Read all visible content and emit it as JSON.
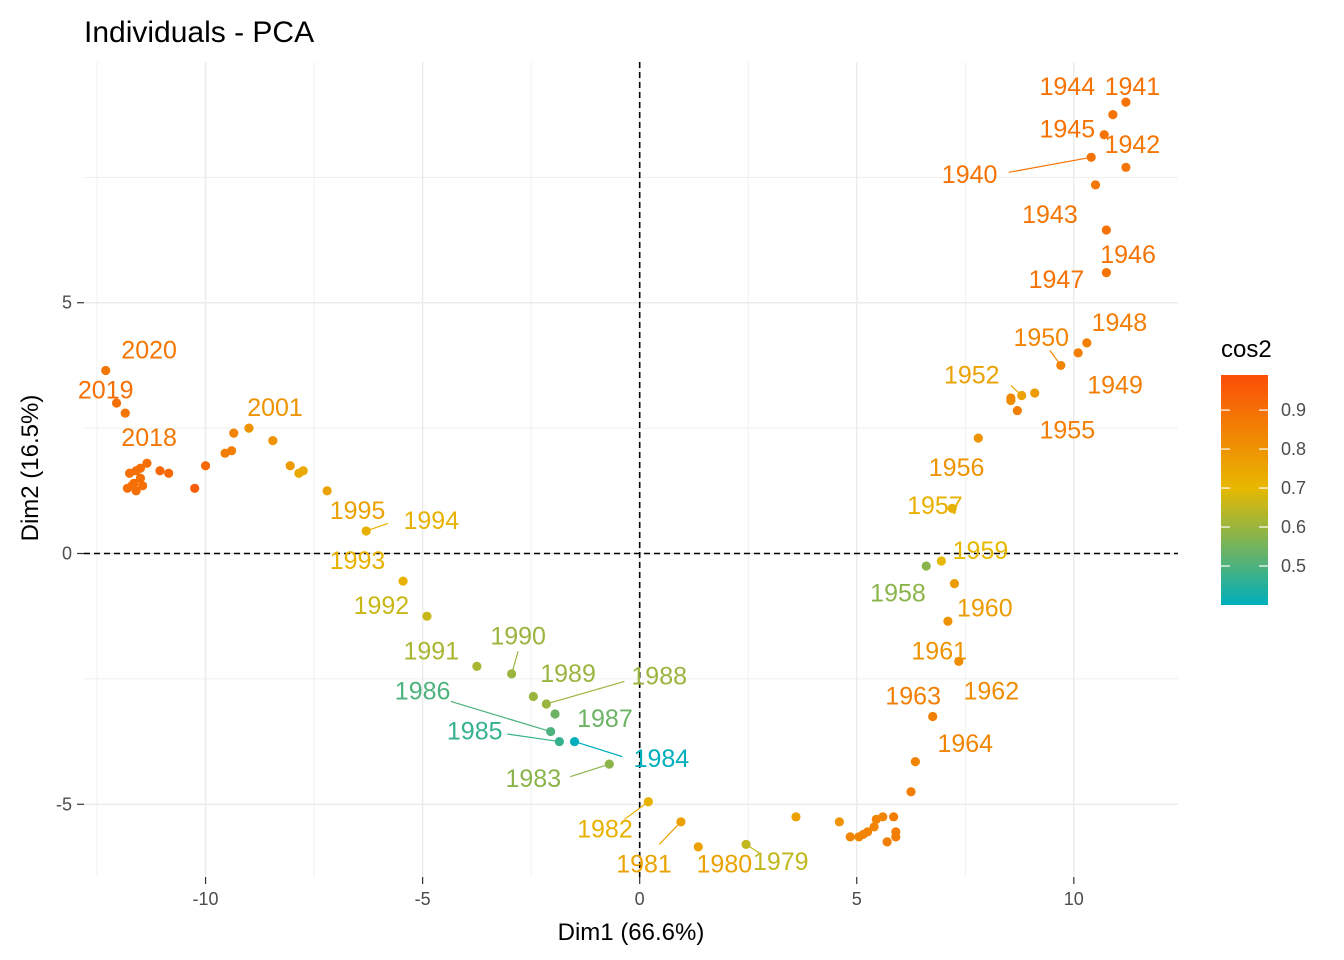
{
  "chart_data": {
    "type": "scatter",
    "title": "Individuals - PCA",
    "xlabel": "Dim1 (66.6%)",
    "ylabel": "Dim2 (16.5%)",
    "xlim": [
      -12.8,
      12.4
    ],
    "ylim": [
      -6.45,
      9.8
    ],
    "x_ticks": [
      -10,
      -5,
      0,
      5,
      10
    ],
    "y_ticks": [
      -5,
      0,
      5
    ],
    "x_tick_labels": [
      "-10",
      "-5",
      "0",
      "5",
      "10"
    ],
    "y_tick_labels": [
      "-5",
      "0",
      "5"
    ],
    "grid": true,
    "reference_lines": {
      "x": 0,
      "y": 0,
      "style": "dashed"
    },
    "color_variable": "cos2",
    "legend": {
      "title": "cos2",
      "placement": "right",
      "range": [
        0.4,
        0.99
      ],
      "ticks": [
        0.5,
        0.6,
        0.7,
        0.8,
        0.9
      ],
      "tick_labels": [
        "0.5",
        "0.6",
        "0.7",
        "0.8",
        "0.9"
      ],
      "gradient": [
        {
          "value": 0.4,
          "color": "#00AFBB"
        },
        {
          "value": 0.7,
          "color": "#E7B800"
        },
        {
          "value": 0.99,
          "color": "#FC4E07"
        }
      ]
    },
    "points": [
      {
        "x": 11.2,
        "y": 9.0,
        "cos2": 0.89,
        "label": "1941"
      },
      {
        "x": 10.9,
        "y": 8.75,
        "cos2": 0.89,
        "label": "1944"
      },
      {
        "x": 11.2,
        "y": 7.7,
        "cos2": 0.88,
        "label": "1942"
      },
      {
        "x": 10.7,
        "y": 8.35,
        "cos2": 0.89,
        "label": "1945"
      },
      {
        "x": 10.4,
        "y": 7.9,
        "cos2": 0.89,
        "label": "1940"
      },
      {
        "x": 10.5,
        "y": 7.35,
        "cos2": 0.88,
        "label": "1943"
      },
      {
        "x": 10.75,
        "y": 6.45,
        "cos2": 0.89,
        "label": "1946"
      },
      {
        "x": 10.75,
        "y": 5.6,
        "cos2": 0.89,
        "label": "1947"
      },
      {
        "x": 10.3,
        "y": 4.2,
        "cos2": 0.86,
        "label": "1948"
      },
      {
        "x": 10.1,
        "y": 4.0,
        "cos2": 0.86,
        "label": "1949"
      },
      {
        "x": 9.7,
        "y": 3.75,
        "cos2": 0.84,
        "label": "1950"
      },
      {
        "x": 9.1,
        "y": 3.2,
        "cos2": 0.78,
        "label": ""
      },
      {
        "x": 8.8,
        "y": 3.15,
        "cos2": 0.76,
        "label": "1952"
      },
      {
        "x": 8.55,
        "y": 3.1,
        "cos2": 0.84,
        "label": ""
      },
      {
        "x": 8.55,
        "y": 3.05,
        "cos2": 0.82,
        "label": ""
      },
      {
        "x": 8.7,
        "y": 2.85,
        "cos2": 0.86,
        "label": "1955"
      },
      {
        "x": 7.8,
        "y": 2.3,
        "cos2": 0.8,
        "label": "1956"
      },
      {
        "x": 7.2,
        "y": 0.9,
        "cos2": 0.72,
        "label": "1957"
      },
      {
        "x": 6.95,
        "y": -0.15,
        "cos2": 0.7,
        "label": "1959"
      },
      {
        "x": 6.6,
        "y": -0.25,
        "cos2": 0.58,
        "label": "1958"
      },
      {
        "x": 7.25,
        "y": -0.6,
        "cos2": 0.78,
        "label": "1960"
      },
      {
        "x": 7.1,
        "y": -1.35,
        "cos2": 0.8,
        "label": "1961"
      },
      {
        "x": 7.35,
        "y": -2.15,
        "cos2": 0.82,
        "label": "1962"
      },
      {
        "x": 6.75,
        "y": -3.25,
        "cos2": 0.86,
        "label": "1963"
      },
      {
        "x": 6.35,
        "y": -4.15,
        "cos2": 0.84,
        "label": "1964"
      },
      {
        "x": 6.25,
        "y": -4.75,
        "cos2": 0.86,
        "label": ""
      },
      {
        "x": 5.85,
        "y": -5.25,
        "cos2": 0.86,
        "label": ""
      },
      {
        "x": 5.9,
        "y": -5.55,
        "cos2": 0.86,
        "label": ""
      },
      {
        "x": 5.9,
        "y": -5.65,
        "cos2": 0.86,
        "label": ""
      },
      {
        "x": 5.7,
        "y": -5.75,
        "cos2": 0.86,
        "label": ""
      },
      {
        "x": 5.6,
        "y": -5.25,
        "cos2": 0.84,
        "label": ""
      },
      {
        "x": 5.45,
        "y": -5.3,
        "cos2": 0.84,
        "label": ""
      },
      {
        "x": 5.4,
        "y": -5.45,
        "cos2": 0.84,
        "label": ""
      },
      {
        "x": 5.25,
        "y": -5.55,
        "cos2": 0.84,
        "label": ""
      },
      {
        "x": 5.15,
        "y": -5.6,
        "cos2": 0.84,
        "label": ""
      },
      {
        "x": 5.05,
        "y": -5.65,
        "cos2": 0.84,
        "label": ""
      },
      {
        "x": 4.85,
        "y": -5.65,
        "cos2": 0.84,
        "label": ""
      },
      {
        "x": 4.6,
        "y": -5.35,
        "cos2": 0.8,
        "label": ""
      },
      {
        "x": 3.6,
        "y": -5.25,
        "cos2": 0.76,
        "label": ""
      },
      {
        "x": 2.45,
        "y": -5.8,
        "cos2": 0.65,
        "label": "1979"
      },
      {
        "x": 1.35,
        "y": -5.85,
        "cos2": 0.76,
        "label": "1980"
      },
      {
        "x": 0.95,
        "y": -5.35,
        "cos2": 0.76,
        "label": "1981"
      },
      {
        "x": 0.2,
        "y": -4.95,
        "cos2": 0.72,
        "label": "1982"
      },
      {
        "x": -0.7,
        "y": -4.2,
        "cos2": 0.58,
        "label": "1983"
      },
      {
        "x": -1.5,
        "y": -3.75,
        "cos2": 0.4,
        "label": "1984"
      },
      {
        "x": -1.85,
        "y": -3.75,
        "cos2": 0.47,
        "label": "1985"
      },
      {
        "x": -2.05,
        "y": -3.55,
        "cos2": 0.5,
        "label": "1986"
      },
      {
        "x": -1.95,
        "y": -3.2,
        "cos2": 0.54,
        "label": "1987"
      },
      {
        "x": -2.15,
        "y": -3.0,
        "cos2": 0.6,
        "label": "1988"
      },
      {
        "x": -2.45,
        "y": -2.85,
        "cos2": 0.6,
        "label": "1989"
      },
      {
        "x": -2.95,
        "y": -2.4,
        "cos2": 0.6,
        "label": "1990"
      },
      {
        "x": -3.75,
        "y": -2.25,
        "cos2": 0.62,
        "label": "1991"
      },
      {
        "x": -4.9,
        "y": -1.25,
        "cos2": 0.66,
        "label": "1992"
      },
      {
        "x": -5.45,
        "y": -0.55,
        "cos2": 0.72,
        "label": "1993"
      },
      {
        "x": -6.3,
        "y": 0.45,
        "cos2": 0.72,
        "label": "1994"
      },
      {
        "x": -7.2,
        "y": 1.25,
        "cos2": 0.76,
        "label": "1995"
      },
      {
        "x": -7.75,
        "y": 1.65,
        "cos2": 0.74,
        "label": ""
      },
      {
        "x": -7.85,
        "y": 1.6,
        "cos2": 0.74,
        "label": ""
      },
      {
        "x": -8.05,
        "y": 1.75,
        "cos2": 0.78,
        "label": ""
      },
      {
        "x": -8.45,
        "y": 2.25,
        "cos2": 0.8,
        "label": ""
      },
      {
        "x": -9.0,
        "y": 2.5,
        "cos2": 0.8,
        "label": "2001"
      },
      {
        "x": -9.35,
        "y": 2.4,
        "cos2": 0.84,
        "label": ""
      },
      {
        "x": -9.4,
        "y": 2.05,
        "cos2": 0.86,
        "label": ""
      },
      {
        "x": -9.55,
        "y": 2.0,
        "cos2": 0.86,
        "label": ""
      },
      {
        "x": -10.0,
        "y": 1.75,
        "cos2": 0.92,
        "label": ""
      },
      {
        "x": -10.25,
        "y": 1.3,
        "cos2": 0.95,
        "label": ""
      },
      {
        "x": -10.85,
        "y": 1.6,
        "cos2": 0.92,
        "label": ""
      },
      {
        "x": -11.05,
        "y": 1.65,
        "cos2": 0.92,
        "label": ""
      },
      {
        "x": -11.35,
        "y": 1.8,
        "cos2": 0.9,
        "label": ""
      },
      {
        "x": -11.45,
        "y": 1.35,
        "cos2": 0.9,
        "label": ""
      },
      {
        "x": -11.5,
        "y": 1.7,
        "cos2": 0.9,
        "label": ""
      },
      {
        "x": -11.5,
        "y": 1.5,
        "cos2": 0.9,
        "label": ""
      },
      {
        "x": -11.6,
        "y": 1.65,
        "cos2": 0.9,
        "label": ""
      },
      {
        "x": -11.6,
        "y": 1.25,
        "cos2": 0.9,
        "label": ""
      },
      {
        "x": -11.65,
        "y": 1.4,
        "cos2": 0.9,
        "label": ""
      },
      {
        "x": -11.7,
        "y": 1.35,
        "cos2": 0.9,
        "label": ""
      },
      {
        "x": -11.75,
        "y": 1.6,
        "cos2": 0.9,
        "label": ""
      },
      {
        "x": -11.8,
        "y": 1.3,
        "cos2": 0.9,
        "label": ""
      },
      {
        "x": -11.85,
        "y": 2.8,
        "cos2": 0.88,
        "label": "2018"
      },
      {
        "x": -12.05,
        "y": 3.0,
        "cos2": 0.9,
        "label": "2019"
      },
      {
        "x": -12.3,
        "y": 3.65,
        "cos2": 0.88,
        "label": "2020"
      }
    ],
    "labels": [
      {
        "text": "1941",
        "x": 11.35,
        "y": 9.3,
        "cos2": 0.89
      },
      {
        "text": "1944",
        "x": 9.85,
        "y": 9.3,
        "cos2": 0.89
      },
      {
        "text": "1945",
        "x": 9.85,
        "y": 8.45,
        "cos2": 0.89
      },
      {
        "text": "1942",
        "x": 11.35,
        "y": 8.15,
        "cos2": 0.88
      },
      {
        "text": "1940",
        "x": 7.6,
        "y": 7.55,
        "cos2": 0.89,
        "seg_x": 8.5,
        "seg_y": 7.6
      },
      {
        "text": "1943",
        "x": 9.45,
        "y": 6.75,
        "cos2": 0.88
      },
      {
        "text": "1946",
        "x": 11.25,
        "y": 5.95,
        "cos2": 0.89
      },
      {
        "text": "1947",
        "x": 9.6,
        "y": 5.45,
        "cos2": 0.89
      },
      {
        "text": "1948",
        "x": 11.05,
        "y": 4.6,
        "cos2": 0.86
      },
      {
        "text": "1950",
        "x": 9.25,
        "y": 4.3,
        "cos2": 0.84,
        "seg_x": 9.45,
        "seg_y": 4.05
      },
      {
        "text": "1949",
        "x": 10.95,
        "y": 3.35,
        "cos2": 0.86
      },
      {
        "text": "1952",
        "x": 7.65,
        "y": 3.55,
        "cos2": 0.76,
        "seg_x": 8.55,
        "seg_y": 3.35
      },
      {
        "text": "1955",
        "x": 9.85,
        "y": 2.45,
        "cos2": 0.86
      },
      {
        "text": "1956",
        "x": 7.3,
        "y": 1.7,
        "cos2": 0.8
      },
      {
        "text": "1957",
        "x": 6.8,
        "y": 0.95,
        "cos2": 0.72
      },
      {
        "text": "1959",
        "x": 7.85,
        "y": 0.05,
        "cos2": 0.7
      },
      {
        "text": "1958",
        "x": 5.95,
        "y": -0.8,
        "cos2": 0.58
      },
      {
        "text": "1960",
        "x": 7.95,
        "y": -1.1,
        "cos2": 0.78
      },
      {
        "text": "1961",
        "x": 6.9,
        "y": -1.95,
        "cos2": 0.8
      },
      {
        "text": "1962",
        "x": 8.1,
        "y": -2.75,
        "cos2": 0.82
      },
      {
        "text": "1963",
        "x": 6.3,
        "y": -2.85,
        "cos2": 0.86
      },
      {
        "text": "1964",
        "x": 7.5,
        "y": -3.8,
        "cos2": 0.84
      },
      {
        "text": "1979",
        "x": 3.25,
        "y": -6.15,
        "cos2": 0.65,
        "seg_x": 2.8,
        "seg_y": -6.0
      },
      {
        "text": "1980",
        "x": 1.95,
        "y": -6.2,
        "cos2": 0.76
      },
      {
        "text": "1981",
        "x": 0.1,
        "y": -6.2,
        "cos2": 0.76,
        "seg_x": 0.45,
        "seg_y": -5.8
      },
      {
        "text": "1982",
        "x": -0.8,
        "y": -5.5,
        "cos2": 0.72,
        "seg_x": -0.35,
        "seg_y": -5.3
      },
      {
        "text": "1983",
        "x": -2.45,
        "y": -4.5,
        "cos2": 0.58,
        "seg_x": -1.6,
        "seg_y": -4.45
      },
      {
        "text": "1984",
        "x": 0.5,
        "y": -4.1,
        "cos2": 0.4,
        "seg_x": -0.4,
        "seg_y": -4.05
      },
      {
        "text": "1985",
        "x": -3.8,
        "y": -3.55,
        "cos2": 0.47,
        "seg_x": -3.05,
        "seg_y": -3.6
      },
      {
        "text": "1986",
        "x": -5.0,
        "y": -2.75,
        "cos2": 0.5,
        "seg_x": -4.35,
        "seg_y": -2.95
      },
      {
        "text": "1987",
        "x": -0.8,
        "y": -3.3,
        "cos2": 0.54
      },
      {
        "text": "1988",
        "x": 0.45,
        "y": -2.45,
        "cos2": 0.6,
        "seg_x": -0.35,
        "seg_y": -2.55
      },
      {
        "text": "1989",
        "x": -1.65,
        "y": -2.4,
        "cos2": 0.6
      },
      {
        "text": "1990",
        "x": -2.8,
        "y": -1.65,
        "cos2": 0.6,
        "seg_x": -2.8,
        "seg_y": -1.95
      },
      {
        "text": "1991",
        "x": -4.8,
        "y": -1.95,
        "cos2": 0.62
      },
      {
        "text": "1992",
        "x": -5.95,
        "y": -1.05,
        "cos2": 0.66
      },
      {
        "text": "1993",
        "x": -6.5,
        "y": -0.15,
        "cos2": 0.72
      },
      {
        "text": "1994",
        "x": -4.8,
        "y": 0.65,
        "cos2": 0.72,
        "seg_x": -5.8,
        "seg_y": 0.6
      },
      {
        "text": "1995",
        "x": -6.5,
        "y": 0.85,
        "cos2": 0.76
      },
      {
        "text": "2001",
        "x": -8.4,
        "y": 2.9,
        "cos2": 0.8
      },
      {
        "text": "2018",
        "x": -11.3,
        "y": 2.3,
        "cos2": 0.88
      },
      {
        "text": "2019",
        "x": -12.3,
        "y": 3.25,
        "cos2": 0.9
      },
      {
        "text": "2020",
        "x": -11.3,
        "y": 4.05,
        "cos2": 0.88
      }
    ]
  }
}
